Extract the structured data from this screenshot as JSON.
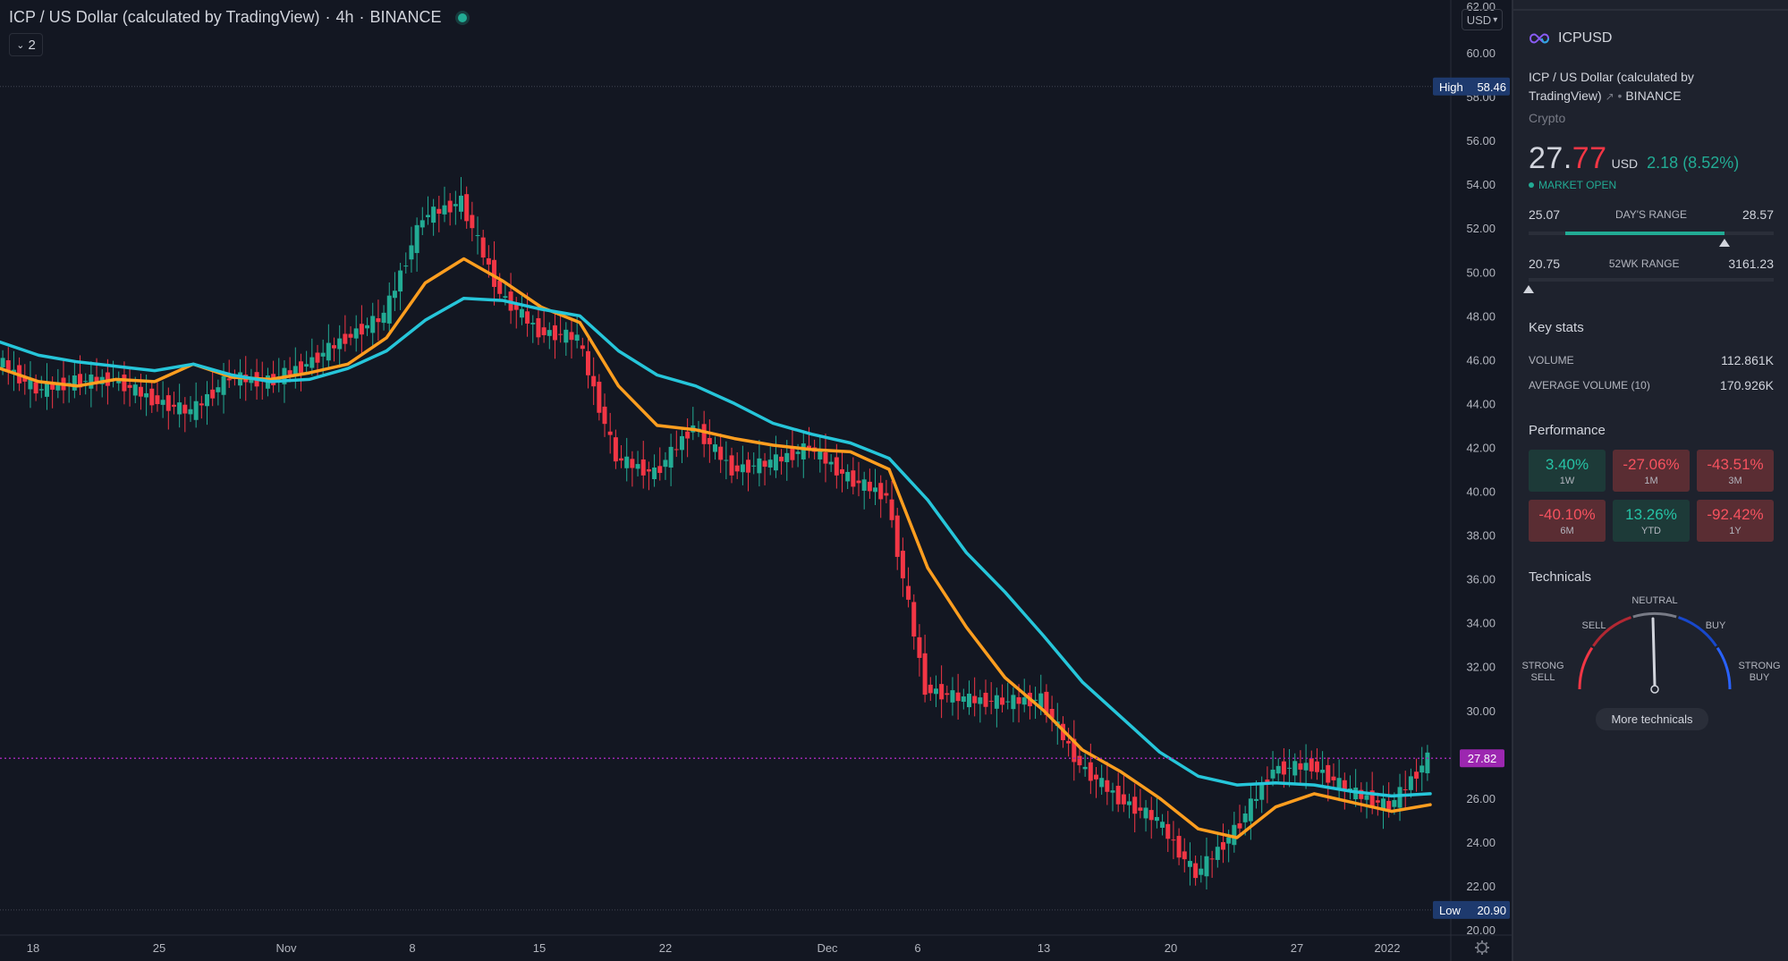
{
  "legend": {
    "title": "ICP / US Dollar (calculated by TradingView)",
    "interval": "4h",
    "exchange": "BINANCE",
    "indicator_count": "2"
  },
  "currency_selector": "USD",
  "price_axis": {
    "top_label": "62.00",
    "labels": [
      "60.00",
      "58.00",
      "56.00",
      "54.00",
      "52.00",
      "50.00",
      "48.00",
      "46.00",
      "44.00",
      "42.00",
      "40.00",
      "38.00",
      "36.00",
      "34.00",
      "32.00",
      "30.00",
      "28.00",
      "26.00",
      "24.00",
      "22.00",
      "20.00"
    ],
    "high": {
      "label": "High",
      "value": "58.46"
    },
    "low": {
      "label": "Low",
      "value": "20.90"
    },
    "last_price": "27.82"
  },
  "time_axis": [
    "18",
    "25",
    "Nov",
    "8",
    "15",
    "22",
    "Dec",
    "6",
    "13",
    "20",
    "27",
    "2022"
  ],
  "chart_data": {
    "type": "line",
    "title": "ICP / US Dollar (calculated by TradingView)",
    "interval": "4h",
    "x_range": [
      "Oct 16",
      "Jan 2"
    ],
    "ylim": [
      20,
      62
    ],
    "log_scale": false,
    "grid": false,
    "x": [
      "Oct 16",
      "Oct 18",
      "Oct 20",
      "Oct 22",
      "Oct 25",
      "Oct 27",
      "Oct 29",
      "Nov 1",
      "Nov 3",
      "Nov 5",
      "Nov 6",
      "Nov 8",
      "Nov 9",
      "Nov 10",
      "Nov 12",
      "Nov 15",
      "Nov 17",
      "Nov 19",
      "Nov 22",
      "Nov 24",
      "Nov 26",
      "Nov 29",
      "Dec 1",
      "Dec 3",
      "Dec 4",
      "Dec 6",
      "Dec 8",
      "Dec 10",
      "Dec 13",
      "Dec 15",
      "Dec 17",
      "Dec 20",
      "Dec 22",
      "Dec 24",
      "Dec 27",
      "Dec 29",
      "Dec 31",
      "Jan 2"
    ],
    "series": [
      {
        "color": "#e0f24a",
        "values": [
          46.0,
          44.6,
          45.0,
          45.1,
          44.2,
          43.6,
          45.2,
          45.0,
          45.8,
          47.0,
          48.0,
          52.5,
          53.2,
          49.0,
          47.3,
          47.0,
          41.5,
          40.8,
          43.0,
          41.0,
          41.3,
          42.0,
          40.6,
          39.8,
          31.0,
          30.5,
          30.4,
          30.5,
          27.5,
          26.0,
          25.0,
          22.5,
          24.5,
          27.3,
          27.5,
          26.3,
          25.6,
          27.8
        ]
      },
      {
        "color": "#ff9e1f",
        "values": [
          45.6,
          45.0,
          44.8,
          45.1,
          45.0,
          45.8,
          45.2,
          45.1,
          45.4,
          45.8,
          47.0,
          49.5,
          50.6,
          49.6,
          48.4,
          47.7,
          44.8,
          43.0,
          42.8,
          42.4,
          42.1,
          41.9,
          41.8,
          41.0,
          36.5,
          33.8,
          31.5,
          30.0,
          28.2,
          27.2,
          26.0,
          24.6,
          24.2,
          25.6,
          26.2,
          25.8,
          25.4,
          25.7
        ]
      },
      {
        "color": "#26c6da",
        "values": [
          46.8,
          46.2,
          45.9,
          45.7,
          45.5,
          45.8,
          45.3,
          45.0,
          45.1,
          45.6,
          46.4,
          47.8,
          48.8,
          48.7,
          48.3,
          48.0,
          46.4,
          45.3,
          44.8,
          44.0,
          43.1,
          42.6,
          42.2,
          41.5,
          39.6,
          37.2,
          35.4,
          33.4,
          31.3,
          29.7,
          28.1,
          27.0,
          26.6,
          26.7,
          26.6,
          26.3,
          26.1,
          26.2
        ]
      }
    ]
  },
  "side": {
    "symbol": "ICPUSD",
    "full_name": "ICP / US Dollar (calculated by TradingView)",
    "exchange": "BINANCE",
    "category": "Crypto",
    "price_main": "27.",
    "price_frac": "77",
    "price_currency": "USD",
    "price_change": "2.18 (8.52%)",
    "market_status": "MARKET OPEN",
    "day_range": {
      "low": "25.07",
      "label": "DAY'S RANGE",
      "high": "28.57",
      "fill_from": 0.15,
      "fill_to": 0.8,
      "marker": 0.8
    },
    "wk52_range": {
      "low": "20.75",
      "label": "52WK RANGE",
      "high": "3161.23",
      "marker": 0.0
    },
    "key_stats_title": "Key stats",
    "volume_label": "VOLUME",
    "volume_value": "112.861K",
    "avg_volume_label": "AVERAGE VOLUME (10)",
    "avg_volume_value": "170.926K",
    "performance_title": "Performance",
    "performance": [
      {
        "value": "3.40%",
        "period": "1W",
        "sign": "pos"
      },
      {
        "value": "-27.06%",
        "period": "1M",
        "sign": "neg"
      },
      {
        "value": "-43.51%",
        "period": "3M",
        "sign": "neg"
      },
      {
        "value": "-40.10%",
        "period": "6M",
        "sign": "neg"
      },
      {
        "value": "13.26%",
        "period": "YTD",
        "sign": "pos"
      },
      {
        "value": "-92.42%",
        "period": "1Y",
        "sign": "neg"
      }
    ],
    "technicals_title": "Technicals",
    "gauge": {
      "neutral": "NEUTRAL",
      "sell": "SELL",
      "buy": "BUY",
      "strong_sell_1": "STRONG",
      "strong_sell_2": "SELL",
      "strong_buy_1": "STRONG",
      "strong_buy_2": "BUY",
      "needle": "neutral"
    },
    "more_technicals": "More technicals"
  },
  "colors": {
    "background": "#131722",
    "panel": "#1e222d",
    "up": "#22ab94",
    "down": "#f23645",
    "ma_fast": "#ff9e1f",
    "ma_slow": "#26c6da",
    "last_price": "#9c27b0",
    "axis_badge": "#1e3a6e"
  }
}
